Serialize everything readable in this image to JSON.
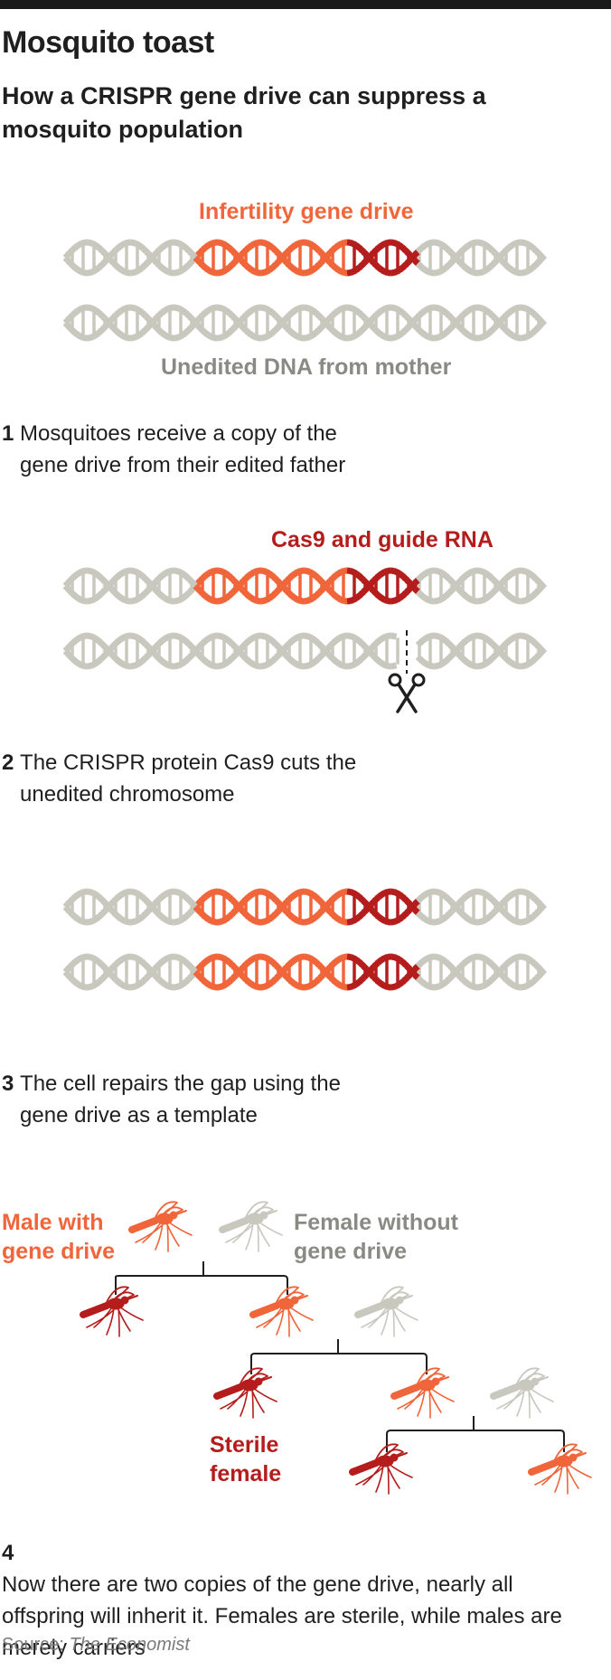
{
  "header": {
    "title": "Mosquito toast",
    "subtitle": "How a CRISPR gene drive can suppress a mosquito population"
  },
  "labels": {
    "infertility_gene_drive": "Infertility gene drive",
    "unedited_dna": "Unedited DNA from mother",
    "cas9_guide": "Cas9 and guide RNA",
    "male_with": "Male with",
    "gene_drive_m": "gene drive",
    "female_without": "Female without",
    "gene_drive_f": "gene drive",
    "sterile": "Sterile",
    "female": "female"
  },
  "steps": [
    {
      "num": "1",
      "text": "Mosquitoes receive a copy of the gene drive from their edited father"
    },
    {
      "num": "2",
      "text": "The CRISPR protein Cas9 cuts the unedited chromosome"
    },
    {
      "num": "3",
      "text": "The cell repairs the gap using the gene drive as a template"
    },
    {
      "num": "4",
      "text": "Now there are two copies of the gene drive, nearly all offspring will inherit it. Females are sterile, while males are merely carriers"
    }
  ],
  "source": {
    "prefix": "Source: ",
    "name": "The Economist"
  },
  "colors": {
    "unedited": "#c8c8bf",
    "drive": "#f0653a",
    "cas9": "#b51d1d",
    "topbar": "#1a1a1a"
  }
}
